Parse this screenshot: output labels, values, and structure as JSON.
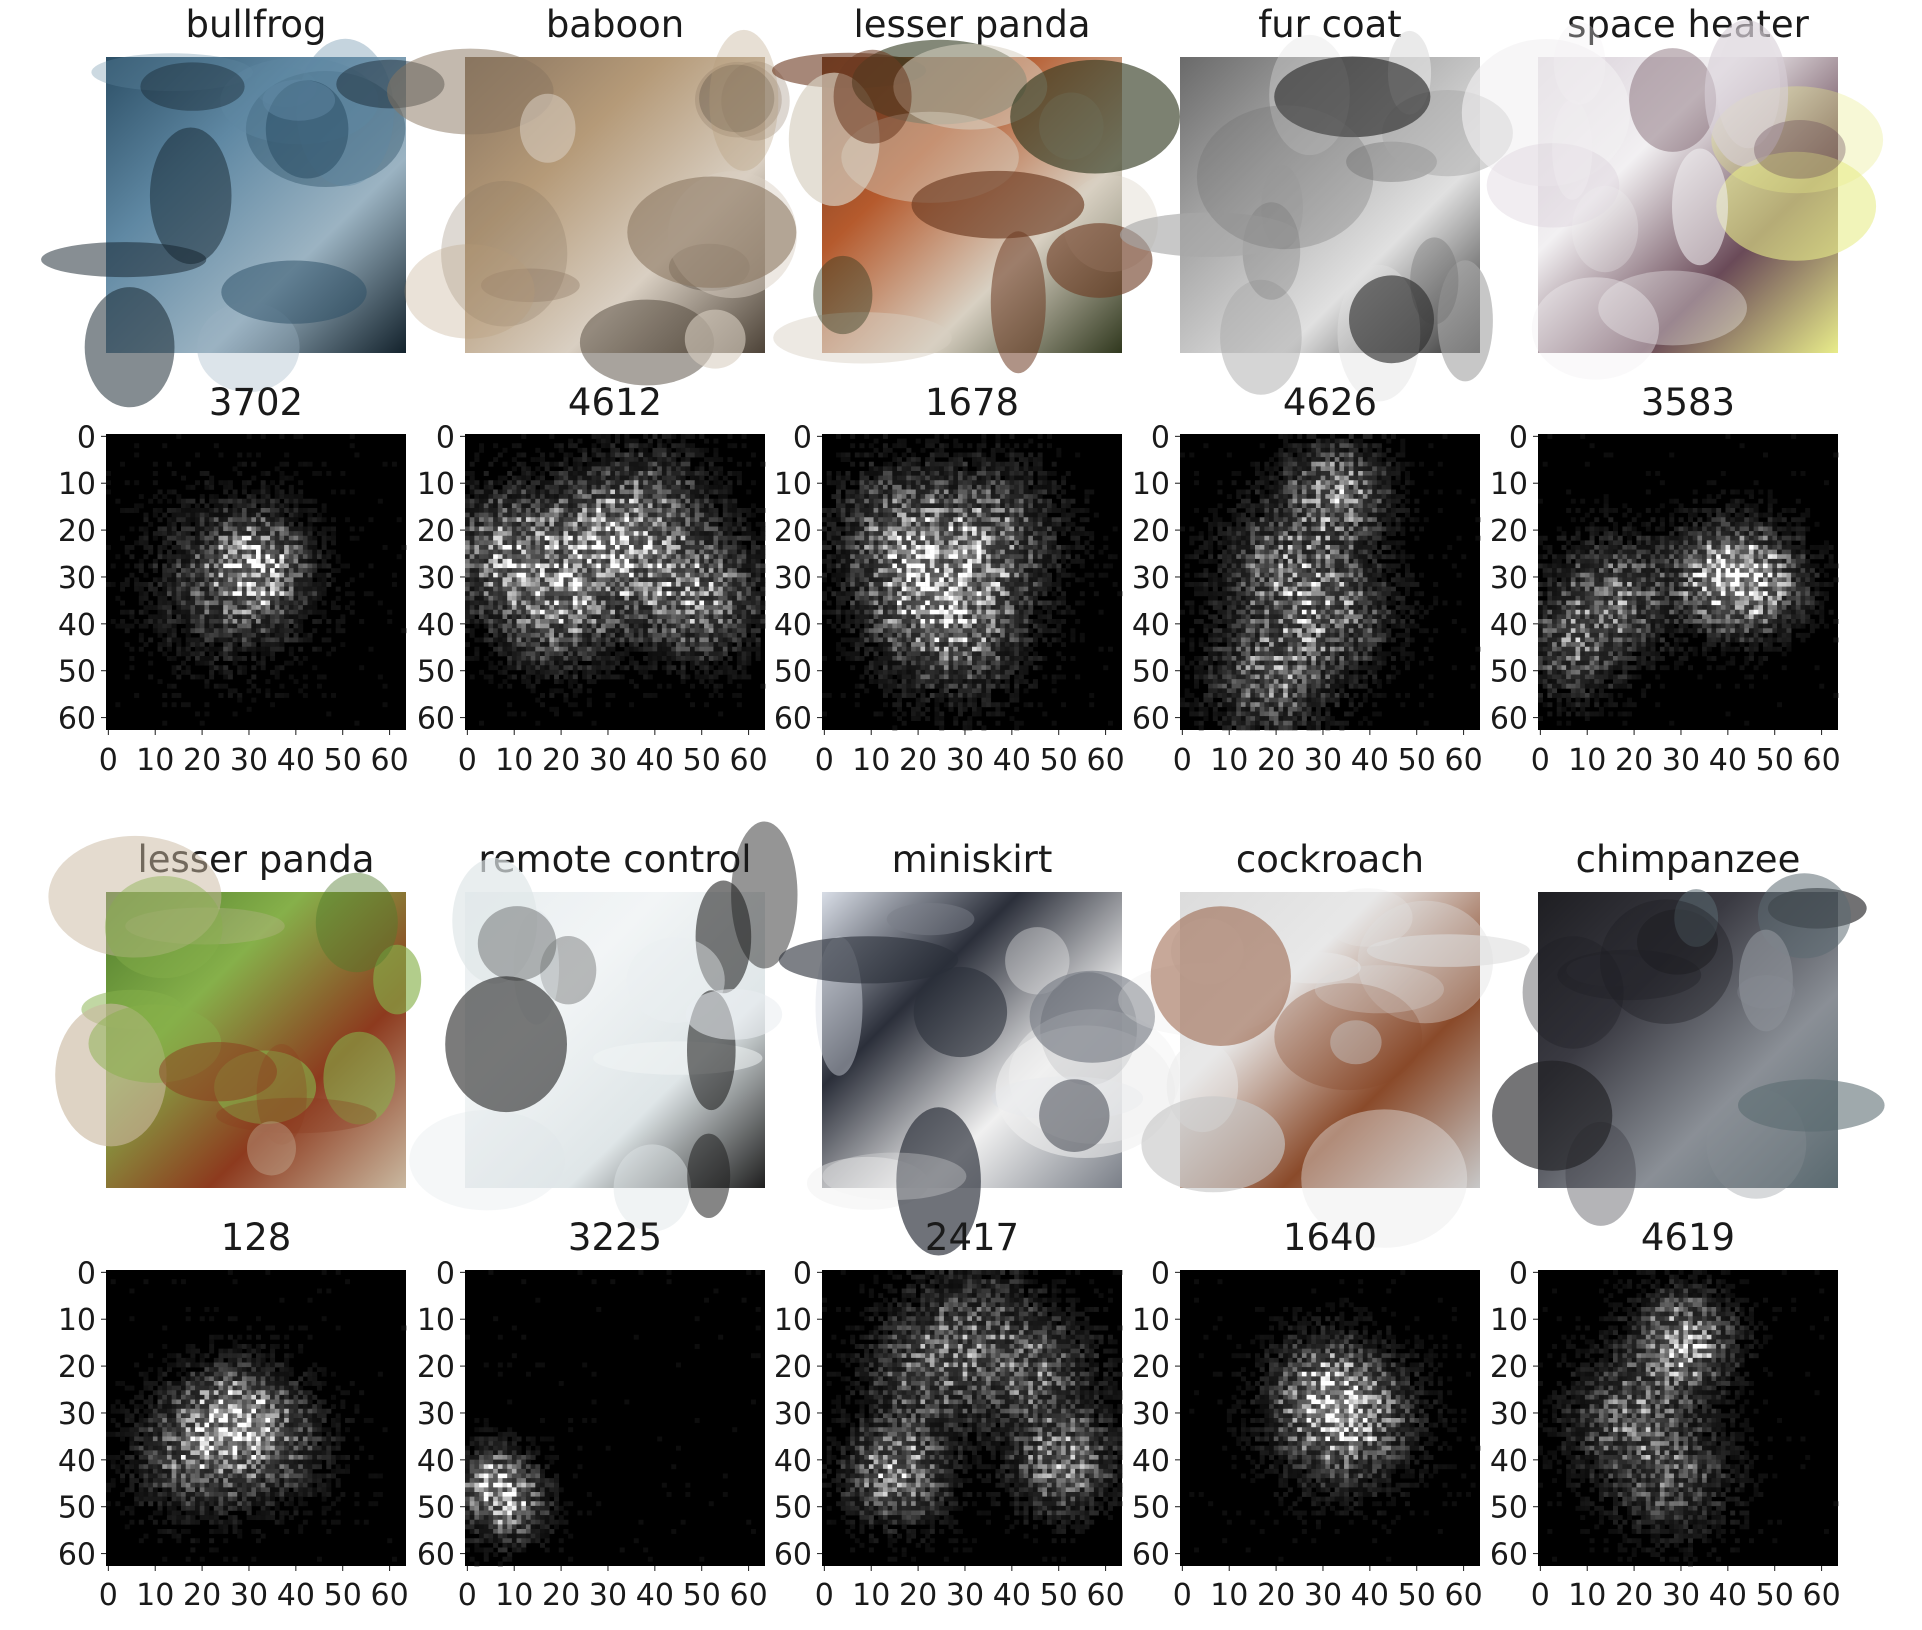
{
  "figure": {
    "rows": [
      {
        "panels": [
          {
            "photo_title": "bullfrog",
            "map_title": "3702",
            "photo_palette": [
              "#2c4f66",
              "#5f88a3",
              "#9bb3c2",
              "#13222c"
            ],
            "hotspots": [
              [
                0.5,
                0.45,
                0.09,
                1.0
              ],
              [
                0.42,
                0.5,
                0.16,
                0.45
              ]
            ]
          },
          {
            "photo_title": "baboon",
            "map_title": "4612",
            "photo_palette": [
              "#8a7560",
              "#b59a78",
              "#d9cfc2",
              "#4d4338"
            ],
            "hotspots": [
              [
                0.14,
                0.4,
                0.12,
                0.8
              ],
              [
                0.45,
                0.4,
                0.14,
                0.75
              ],
              [
                0.78,
                0.55,
                0.12,
                0.8
              ],
              [
                0.3,
                0.6,
                0.12,
                0.6
              ],
              [
                0.6,
                0.3,
                0.14,
                0.6
              ]
            ]
          },
          {
            "photo_title": "lesser panda",
            "map_title": "1678",
            "photo_palette": [
              "#6d3b22",
              "#b55a2d",
              "#d8d0c2",
              "#30381e"
            ],
            "hotspots": [
              [
                0.35,
                0.5,
                0.14,
                0.8
              ],
              [
                0.55,
                0.35,
                0.14,
                0.6
              ],
              [
                0.45,
                0.65,
                0.14,
                0.6
              ],
              [
                0.25,
                0.3,
                0.12,
                0.5
              ]
            ]
          },
          {
            "photo_title": "fur coat",
            "map_title": "4626",
            "photo_palette": [
              "#6a6a6a",
              "#a8a8a8",
              "#e0e0e0",
              "#2e2e2e"
            ],
            "hotspots": [
              [
                0.52,
                0.2,
                0.1,
                0.8
              ],
              [
                0.35,
                0.45,
                0.13,
                0.55
              ],
              [
                0.5,
                0.6,
                0.13,
                0.55
              ],
              [
                0.3,
                0.82,
                0.12,
                0.6
              ]
            ]
          },
          {
            "photo_title": "space heater",
            "map_title": "3583",
            "photo_palette": [
              "#d8cfd8",
              "#f2f0f2",
              "#6a4a58",
              "#e8ec8a"
            ],
            "hotspots": [
              [
                0.72,
                0.5,
                0.1,
                1.0
              ],
              [
                0.6,
                0.48,
                0.1,
                0.8
              ],
              [
                0.25,
                0.55,
                0.12,
                0.6
              ],
              [
                0.12,
                0.72,
                0.1,
                0.55
              ]
            ]
          }
        ]
      },
      {
        "panels": [
          {
            "photo_title": "lesser panda",
            "map_title": "128",
            "photo_palette": [
              "#4f7c2c",
              "#86b04a",
              "#8d3a1e",
              "#c9b8a0"
            ],
            "hotspots": [
              [
                0.42,
                0.5,
                0.1,
                1.0
              ],
              [
                0.3,
                0.62,
                0.12,
                0.6
              ],
              [
                0.55,
                0.58,
                0.12,
                0.45
              ]
            ]
          },
          {
            "photo_title": "remote control",
            "map_title": "3225",
            "photo_palette": [
              "#e9eef0",
              "#f2f5f6",
              "#dfe6e8",
              "#1e1e1e"
            ],
            "hotspots": [
              [
                0.1,
                0.72,
                0.07,
                1.0
              ],
              [
                0.15,
                0.8,
                0.08,
                0.6
              ]
            ]
          },
          {
            "photo_title": "miniskirt",
            "map_title": "2417",
            "photo_palette": [
              "#d8dde6",
              "#2b2f3a",
              "#f0f0f0",
              "#7a7f88"
            ],
            "hotspots": [
              [
                0.25,
                0.68,
                0.1,
                0.9
              ],
              [
                0.8,
                0.65,
                0.1,
                0.8
              ],
              [
                0.35,
                0.35,
                0.12,
                0.5
              ],
              [
                0.72,
                0.35,
                0.12,
                0.5
              ],
              [
                0.5,
                0.2,
                0.14,
                0.4
              ]
            ]
          },
          {
            "photo_title": "cockroach",
            "map_title": "1640",
            "photo_palette": [
              "#dcdcdc",
              "#e8e8e8",
              "#8a4a2a",
              "#c8c8c8"
            ],
            "hotspots": [
              [
                0.55,
                0.5,
                0.13,
                0.95
              ],
              [
                0.48,
                0.4,
                0.1,
                0.6
              ]
            ]
          },
          {
            "photo_title": "chimpanzee",
            "map_title": "4619",
            "photo_palette": [
              "#1e1e22",
              "#3a3a42",
              "#8a8f96",
              "#5a6a70"
            ],
            "hotspots": [
              [
                0.48,
                0.25,
                0.1,
                1.0
              ],
              [
                0.3,
                0.5,
                0.12,
                0.55
              ],
              [
                0.45,
                0.7,
                0.12,
                0.45
              ]
            ]
          }
        ]
      }
    ],
    "tick_labels": [
      "0",
      "10",
      "20",
      "30",
      "40",
      "50",
      "60"
    ],
    "tick_values": [
      0,
      10,
      20,
      30,
      40,
      50,
      60
    ]
  },
  "chart_data": {
    "type": "heatmap",
    "description": "Grid of image samples with class titles and corresponding saliency heatmaps titled by index",
    "grid_size": 64,
    "xlim": [
      0,
      63
    ],
    "ylim": [
      63,
      0
    ],
    "x_ticks": [
      0,
      10,
      20,
      30,
      40,
      50,
      60
    ],
    "y_ticks": [
      0,
      10,
      20,
      30,
      40,
      50,
      60
    ],
    "colormap": "gray",
    "panels": [
      {
        "image_label": "bullfrog",
        "heatmap_title": "3702"
      },
      {
        "image_label": "baboon",
        "heatmap_title": "4612"
      },
      {
        "image_label": "lesser panda",
        "heatmap_title": "1678"
      },
      {
        "image_label": "fur coat",
        "heatmap_title": "4626"
      },
      {
        "image_label": "space heater",
        "heatmap_title": "3583"
      },
      {
        "image_label": "lesser panda",
        "heatmap_title": "128"
      },
      {
        "image_label": "remote control",
        "heatmap_title": "3225"
      },
      {
        "image_label": "miniskirt",
        "heatmap_title": "2417"
      },
      {
        "image_label": "cockroach",
        "heatmap_title": "1640"
      },
      {
        "image_label": "chimpanzee",
        "heatmap_title": "4619"
      }
    ]
  }
}
